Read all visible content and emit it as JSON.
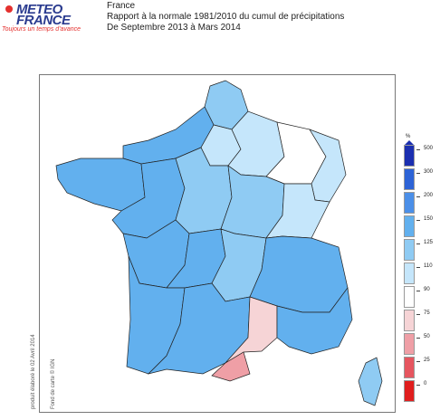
{
  "logo": {
    "line1": "METEO",
    "line2": "FRANCE",
    "tagline": "Toujours un temps d'avance"
  },
  "header": {
    "region": "France",
    "title": "Rapport à la normale 1981/2010 du cumul de précipitations",
    "period": "De Septembre 2013 à Mars 2014"
  },
  "credits": {
    "produced": "produit élaboré le 02 Avril 2014",
    "basemap": "Fond de carte © IGN"
  },
  "legend": {
    "unit": "%",
    "classes": [
      {
        "label": "500",
        "color": "#1b2fb0"
      },
      {
        "label": "300",
        "color": "#2d63d6"
      },
      {
        "label": "200",
        "color": "#4b8fe8"
      },
      {
        "label": "150",
        "color": "#62b0ee"
      },
      {
        "label": "125",
        "color": "#8fcbf3"
      },
      {
        "label": "110",
        "color": "#c5e6fb"
      },
      {
        "label": "90",
        "color": "#ffffff"
      },
      {
        "label": "75",
        "color": "#f6d4d6"
      },
      {
        "label": "50",
        "color": "#ef9fa6"
      },
      {
        "label": "25",
        "color": "#e6555f"
      },
      {
        "label": "0",
        "color": "#e01e1e"
      }
    ]
  },
  "map": {
    "regions": [
      {
        "name": "region-brittany",
        "level": "150"
      },
      {
        "name": "region-normandy",
        "level": "150"
      },
      {
        "name": "region-nord",
        "level": "125"
      },
      {
        "name": "region-ile-de-france",
        "level": "110"
      },
      {
        "name": "region-champagne",
        "level": "110"
      },
      {
        "name": "region-lorraine",
        "level": "90"
      },
      {
        "name": "region-alsace",
        "level": "110"
      },
      {
        "name": "region-pays-de-loire",
        "level": "150"
      },
      {
        "name": "region-centre",
        "level": "125"
      },
      {
        "name": "region-bourgogne",
        "level": "125"
      },
      {
        "name": "region-franche-comte",
        "level": "110"
      },
      {
        "name": "region-poitou",
        "level": "150"
      },
      {
        "name": "region-limousin",
        "level": "150"
      },
      {
        "name": "region-auvergne",
        "level": "125"
      },
      {
        "name": "region-rhone-alpes",
        "level": "150"
      },
      {
        "name": "region-aquitaine",
        "level": "150"
      },
      {
        "name": "region-midi-pyrenees",
        "level": "150"
      },
      {
        "name": "region-languedoc",
        "level": "75"
      },
      {
        "name": "region-roussillon",
        "level": "50"
      },
      {
        "name": "region-provence",
        "level": "150"
      },
      {
        "name": "region-corsica",
        "level": "125"
      }
    ]
  }
}
